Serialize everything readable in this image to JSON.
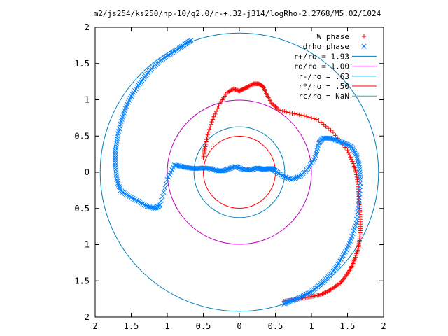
{
  "chart_data": {
    "type": "scatter",
    "title": "m2/js254/ks250/np-10/q2.0/r-+.32-j314/logRho-2.2768/M5.02/1024",
    "xlim": [
      -2,
      2
    ],
    "ylim": [
      -2,
      2
    ],
    "x_tick_labels": [
      "2",
      "1.5",
      "1",
      "0.5",
      "0",
      "0.5",
      "1",
      "1.5",
      "2"
    ],
    "y_tick_labels": [
      "2",
      "1.5",
      "1",
      "0.5",
      "0",
      "0.5",
      "1",
      "1.5",
      "2"
    ],
    "legend_position": "top-right",
    "grid": false,
    "series": [
      {
        "name": "W phase",
        "marker": "+",
        "color": "#ff0000",
        "x": [
          -0.5,
          -0.48,
          -0.44,
          -0.37,
          -0.27,
          -0.17,
          -0.08,
          0.0,
          0.06,
          0.12,
          0.2,
          0.27,
          0.33,
          0.38,
          0.45,
          0.55,
          0.7,
          0.9,
          1.1,
          1.3,
          1.5,
          1.58,
          1.62,
          1.65,
          1.66,
          1.67,
          1.68,
          1.67,
          1.65,
          1.6,
          1.55,
          1.48,
          1.4,
          1.3,
          1.2,
          1.1,
          0.98,
          0.86,
          0.74,
          0.62
        ],
        "y": [
          0.2,
          0.32,
          0.52,
          0.73,
          0.95,
          1.1,
          1.15,
          1.12,
          1.15,
          1.18,
          1.22,
          1.22,
          1.18,
          1.07,
          0.95,
          0.86,
          0.82,
          0.78,
          0.72,
          0.55,
          0.3,
          0.12,
          0.0,
          -0.2,
          -0.4,
          -0.55,
          -0.75,
          -0.92,
          -1.05,
          -1.2,
          -1.32,
          -1.43,
          -1.53,
          -1.6,
          -1.66,
          -1.7,
          -1.72,
          -1.74,
          -1.76,
          -1.78
        ]
      },
      {
        "name": "drho phase",
        "marker": "x",
        "color": "#0080ff",
        "x": [
          -0.67,
          -0.75,
          -0.85,
          -0.96,
          -1.08,
          -1.2,
          -1.3,
          -1.4,
          -1.5,
          -1.58,
          -1.64,
          -1.69,
          -1.72,
          -1.72,
          -1.7,
          -1.65,
          -1.55,
          -1.4,
          -1.28,
          -1.17,
          -1.1,
          -1.0,
          -0.9,
          -0.8,
          -0.7,
          -0.6,
          -0.5,
          -0.4,
          -0.3,
          -0.22,
          -0.14,
          -0.05,
          0.05,
          0.15,
          0.25,
          0.33,
          0.4,
          0.45,
          0.5,
          0.6,
          0.72,
          0.85,
          0.95,
          1.05,
          1.1,
          1.16,
          1.25,
          1.35,
          1.45,
          1.55,
          1.62,
          1.66,
          1.68,
          1.66,
          1.62,
          1.55,
          1.47,
          1.38,
          1.3,
          1.2,
          1.1,
          1.0,
          0.9,
          0.8,
          0.7,
          0.62
        ],
        "y": [
          1.82,
          1.77,
          1.7,
          1.63,
          1.55,
          1.45,
          1.33,
          1.2,
          1.05,
          0.88,
          0.7,
          0.5,
          0.3,
          0.1,
          -0.1,
          -0.25,
          -0.32,
          -0.4,
          -0.47,
          -0.5,
          -0.45,
          -0.1,
          0.1,
          0.08,
          0.06,
          0.05,
          0.06,
          0.05,
          0.02,
          0.02,
          0.05,
          0.08,
          0.04,
          0.03,
          0.06,
          0.04,
          0.05,
          0.05,
          0.02,
          -0.05,
          -0.1,
          -0.05,
          0.05,
          0.2,
          0.4,
          0.47,
          0.47,
          0.44,
          0.4,
          0.36,
          0.25,
          0.1,
          -0.1,
          -0.4,
          -0.7,
          -0.92,
          -1.1,
          -1.25,
          -1.37,
          -1.48,
          -1.57,
          -1.65,
          -1.7,
          -1.75,
          -1.78,
          -1.82
        ]
      },
      {
        "name": "r+/ro = 1.93",
        "type": "circle",
        "radius": 1.93,
        "color": "#0080c0"
      },
      {
        "name": "ro/ro = 1.00",
        "type": "circle",
        "radius": 1.0,
        "color": "#c000c0"
      },
      {
        "name": "r-/ro = .63",
        "type": "circle",
        "radius": 0.63,
        "color": "#0080c0"
      },
      {
        "name": "r*/ro = .50",
        "type": "circle",
        "radius": 0.5,
        "color": "#ff0000"
      },
      {
        "name": "rc/ro = NaN",
        "type": "circle",
        "radius": null,
        "color": "#00c0c0"
      }
    ]
  }
}
